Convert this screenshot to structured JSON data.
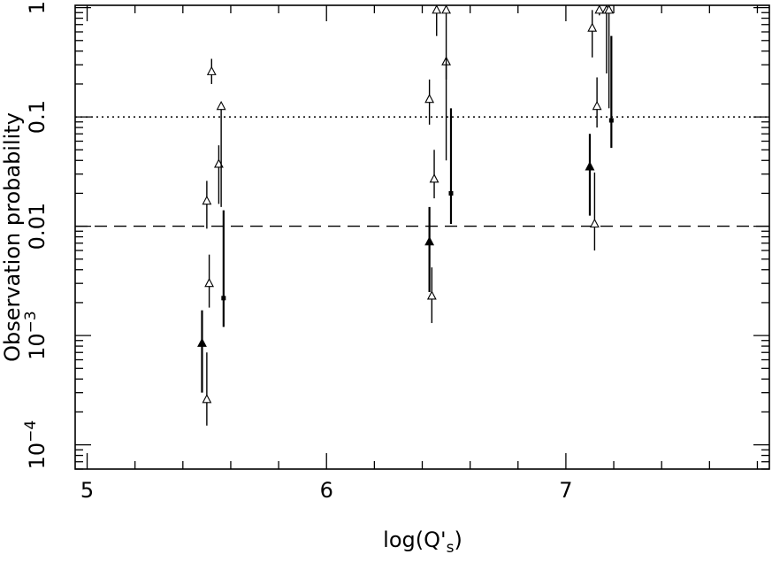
{
  "chart_data": {
    "type": "scatter",
    "xlabel": "log(Q's)",
    "ylabel": "Observation probability",
    "x_axis": {
      "range": [
        4.95,
        7.85
      ],
      "ticks": [
        5,
        6,
        7
      ],
      "tick_labels": [
        "5",
        "6",
        "7"
      ]
    },
    "y_axis": {
      "scale": "log",
      "range": [
        6e-05,
        1.05
      ],
      "ticks": [
        0.0001,
        0.001,
        0.01,
        0.1,
        1
      ],
      "tick_labels": [
        {
          "base": "10",
          "exp": "−4"
        },
        {
          "base": "10",
          "exp": "−3"
        },
        {
          "base": "0.01",
          "exp": ""
        },
        {
          "base": "0.1",
          "exp": ""
        },
        {
          "base": "1",
          "exp": ""
        }
      ]
    },
    "reference_lines": [
      {
        "y": 0.1,
        "style": "dotted"
      },
      {
        "y": 0.01,
        "style": "dashed"
      }
    ],
    "series": [
      {
        "marker": "open-triangle",
        "points": [
          {
            "x": 5.5,
            "y": 0.017,
            "ylo": 0.0095,
            "yhi": 0.026
          },
          {
            "x": 5.52,
            "y": 0.26,
            "ylo": 0.2,
            "yhi": 0.34
          },
          {
            "x": 5.51,
            "y": 0.003,
            "ylo": 0.0018,
            "yhi": 0.0055
          },
          {
            "x": 5.55,
            "y": 0.037,
            "ylo": 0.016,
            "yhi": 0.055
          },
          {
            "x": 5.56,
            "y": 0.125,
            "ylo": 0.015,
            "yhi": 0.125
          },
          {
            "x": 5.5,
            "y": 0.00026,
            "ylo": 0.00015,
            "yhi": 0.0007
          },
          {
            "x": 6.43,
            "y": 0.145,
            "ylo": 0.085,
            "yhi": 0.22
          },
          {
            "x": 6.45,
            "y": 0.027,
            "ylo": 0.018,
            "yhi": 0.05
          },
          {
            "x": 6.46,
            "y": 0.95,
            "ylo": 0.55,
            "yhi": 1.0
          },
          {
            "x": 6.5,
            "y": 0.32,
            "ylo": 0.04,
            "yhi": 0.32
          },
          {
            "x": 6.5,
            "y": 0.95,
            "ylo": 0.22,
            "yhi": 1.0
          },
          {
            "x": 6.44,
            "y": 0.0023,
            "ylo": 0.0013,
            "yhi": 0.0042
          },
          {
            "x": 7.11,
            "y": 0.65,
            "ylo": 0.35,
            "yhi": 0.95
          },
          {
            "x": 7.13,
            "y": 0.125,
            "ylo": 0.08,
            "yhi": 0.23
          },
          {
            "x": 7.14,
            "y": 0.95,
            "ylo": 0.85,
            "yhi": 1.0
          },
          {
            "x": 7.17,
            "y": 0.95,
            "ylo": 0.25,
            "yhi": 1.0
          },
          {
            "x": 7.18,
            "y": 0.95,
            "ylo": 0.12,
            "yhi": 1.0
          },
          {
            "x": 7.12,
            "y": 0.0105,
            "ylo": 0.006,
            "yhi": 0.031
          }
        ]
      },
      {
        "marker": "filled-triangle",
        "points": [
          {
            "x": 5.48,
            "y": 0.00085,
            "ylo": 0.0003,
            "yhi": 0.0017
          },
          {
            "x": 6.43,
            "y": 0.0072,
            "ylo": 0.0025,
            "yhi": 0.015
          },
          {
            "x": 7.1,
            "y": 0.035,
            "ylo": 0.0125,
            "yhi": 0.07
          }
        ]
      },
      {
        "marker": "filled-square",
        "points": [
          {
            "x": 5.57,
            "y": 0.0022,
            "ylo": 0.0012,
            "yhi": 0.014
          },
          {
            "x": 6.52,
            "y": 0.02,
            "ylo": 0.0105,
            "yhi": 0.12
          },
          {
            "x": 7.19,
            "y": 0.093,
            "ylo": 0.052,
            "yhi": 0.55
          }
        ]
      }
    ]
  }
}
